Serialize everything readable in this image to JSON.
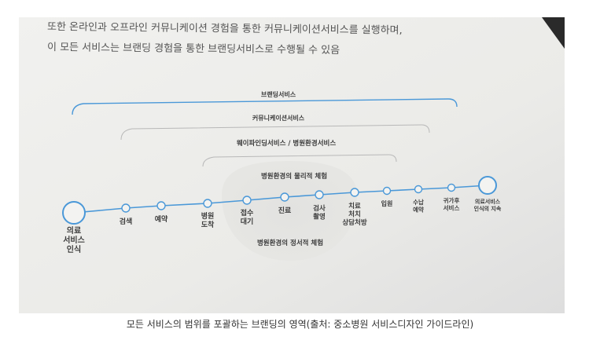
{
  "intro_lines": [
    "또한 온라인과 오프라인 커뮤니케이션 경험을 통한 커뮤니케이션서비스를 실행하며,",
    "이 모든 서비스는 브랜딩 경험을 통한 브랜딩서비스로 수행될 수 있음"
  ],
  "brackets": {
    "branding": "브랜딩서비스",
    "communication": "커뮤니케이션서비스",
    "wayfinding": "웨이파인딩서비스 / 병원환경서비스"
  },
  "physical_label": "병원환경의 물리적 체험",
  "emotional_label": "병원환경의 정서적 체험",
  "steps": [
    {
      "key": "start",
      "lines": [
        "의료",
        "서비스",
        "인식"
      ]
    },
    {
      "key": "search",
      "lines": [
        "검색"
      ]
    },
    {
      "key": "reserve",
      "lines": [
        "예약"
      ]
    },
    {
      "key": "arrive",
      "lines": [
        "병원",
        "도착"
      ]
    },
    {
      "key": "reception",
      "lines": [
        "접수",
        "대기"
      ]
    },
    {
      "key": "treatment",
      "lines": [
        "진료"
      ]
    },
    {
      "key": "exam",
      "lines": [
        "검사",
        "촬영"
      ]
    },
    {
      "key": "therapy",
      "lines": [
        "치료",
        "처치",
        "상담처방"
      ]
    },
    {
      "key": "admission",
      "lines": [
        "입원"
      ]
    },
    {
      "key": "payment",
      "lines": [
        "수납",
        "예약"
      ]
    },
    {
      "key": "return",
      "lines": [
        "귀가후",
        "서비스"
      ]
    },
    {
      "key": "end",
      "lines": [
        "의료서비스",
        "인식의 지속"
      ]
    }
  ],
  "caption": "모든 서비스의 범위를 포괄하는 브랜딩의 영역(출처: 중소병원 서비스디자인 가이드라인)"
}
